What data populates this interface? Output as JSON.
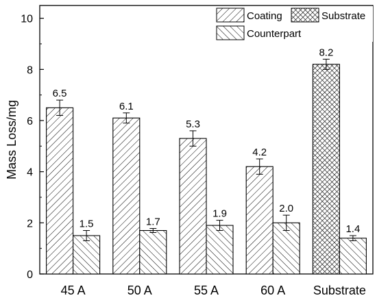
{
  "chart_data": {
    "type": "bar",
    "xlabel": "",
    "ylabel": "Mass Loss/mg",
    "ylim": [
      0,
      10.5
    ],
    "yticks": [
      0,
      2,
      4,
      6,
      8,
      10
    ],
    "categories": [
      "45 A",
      "50 A",
      "55 A",
      "60 A",
      "Substrate"
    ],
    "series": [
      {
        "name": "Coating",
        "pattern": "diagonal-right",
        "values": [
          6.5,
          6.1,
          5.3,
          4.2,
          null
        ],
        "errors": [
          0.3,
          0.2,
          0.3,
          0.3,
          null
        ],
        "labels": [
          "6.5",
          "6.1",
          "5.3",
          "4.2",
          null
        ]
      },
      {
        "name": "Substrate",
        "pattern": "crosshatch",
        "values": [
          null,
          null,
          null,
          null,
          8.2
        ],
        "errors": [
          null,
          null,
          null,
          null,
          0.2
        ],
        "labels": [
          null,
          null,
          null,
          null,
          "8.2"
        ]
      },
      {
        "name": "Counterpart",
        "pattern": "diagonal-left",
        "values": [
          1.5,
          1.7,
          1.9,
          2.0,
          1.4
        ],
        "errors": [
          0.2,
          0.08,
          0.2,
          0.3,
          0.1
        ],
        "labels": [
          "1.5",
          "1.7",
          "1.9",
          "2.0",
          "1.4"
        ]
      }
    ],
    "legend": {
      "placement": "top-right",
      "order": [
        "Coating",
        "Substrate",
        "Counterpart"
      ]
    },
    "grid": false
  }
}
